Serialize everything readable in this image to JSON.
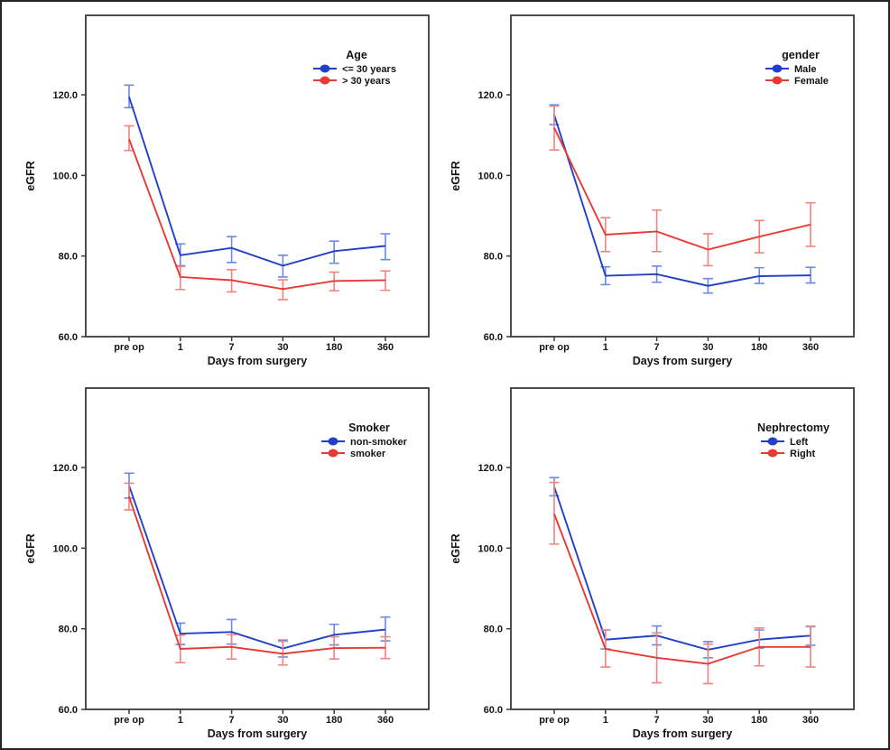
{
  "page": {
    "background": "#ffffff",
    "border_color": "#242424"
  },
  "colors": {
    "series_blue": "#2140c8",
    "series_red": "#e83a34",
    "error_blue": "#6b89e8",
    "error_red": "#f2837e",
    "frame": "#3a3a3a",
    "text": "#141414"
  },
  "chart_data": [
    {
      "type": "line",
      "position": "top-left",
      "legend_title": "Age",
      "legend_position": "upper-right-inside",
      "xlabel": "Days from surgery",
      "ylabel": "eGFR",
      "categories": [
        "pre op",
        "1",
        "7",
        "30",
        "180",
        "360"
      ],
      "ytick_labels": [
        "60.0",
        "80.0",
        "100.0",
        "120.0"
      ],
      "yticks": [
        60,
        80,
        100,
        120
      ],
      "ylim": [
        60,
        139.7
      ],
      "grid": false,
      "error_bars": true,
      "series": [
        {
          "name": "<= 30 years",
          "color": "blue",
          "values": [
            119.5,
            80.2,
            82.0,
            77.6,
            81.2,
            82.5
          ],
          "lower": [
            116.8,
            77.6,
            78.4,
            74.8,
            78.2,
            79.1
          ],
          "upper": [
            122.4,
            83.0,
            84.8,
            80.2,
            83.7,
            85.5
          ]
        },
        {
          "name": "> 30 years",
          "color": "red",
          "values": [
            109.0,
            74.8,
            74.0,
            71.8,
            73.8,
            74.0
          ],
          "lower": [
            106.2,
            71.7,
            71.1,
            69.2,
            71.4,
            71.5
          ],
          "upper": [
            112.3,
            77.4,
            76.6,
            74.1,
            76.0,
            76.3
          ]
        }
      ]
    },
    {
      "type": "line",
      "position": "top-right",
      "legend_title": "gender",
      "legend_position": "upper-right-inside",
      "xlabel": "Days from surgery",
      "ylabel": "eGFR",
      "categories": [
        "pre op",
        "1",
        "7",
        "30",
        "180",
        "360"
      ],
      "ytick_labels": [
        "60.0",
        "80.0",
        "100.0",
        "120.0"
      ],
      "yticks": [
        60,
        80,
        100,
        120
      ],
      "ylim": [
        60,
        139.7
      ],
      "grid": false,
      "error_bars": true,
      "series": [
        {
          "name": "Male",
          "color": "blue",
          "values": [
            115.0,
            75.1,
            75.5,
            72.6,
            75.0,
            75.2
          ],
          "lower": [
            112.6,
            72.9,
            73.5,
            70.8,
            73.2,
            73.3
          ],
          "upper": [
            117.5,
            77.3,
            77.5,
            74.4,
            77.1,
            77.2
          ]
        },
        {
          "name": "Female",
          "color": "red",
          "values": [
            111.8,
            85.3,
            86.1,
            81.6,
            84.8,
            87.8
          ],
          "lower": [
            106.3,
            81.1,
            81.1,
            77.6,
            80.8,
            82.4
          ],
          "upper": [
            117.2,
            89.5,
            91.4,
            85.5,
            88.8,
            93.2
          ]
        }
      ]
    },
    {
      "type": "line",
      "position": "bottom-left",
      "legend_title": "Smoker",
      "legend_position": "upper-right-inside",
      "xlabel": "Days from surgery",
      "ylabel": "eGFR",
      "categories": [
        "pre op",
        "1",
        "7",
        "30",
        "180",
        "360"
      ],
      "ytick_labels": [
        "60.0",
        "80.0",
        "100.0",
        "120.0"
      ],
      "yticks": [
        60,
        80,
        100,
        120
      ],
      "ylim": [
        60,
        139.7
      ],
      "grid": false,
      "error_bars": true,
      "series": [
        {
          "name": "non-smoker",
          "color": "blue",
          "values": [
            115.5,
            78.8,
            79.2,
            75.1,
            78.5,
            79.8
          ],
          "lower": [
            112.4,
            76.1,
            76.2,
            73.0,
            76.0,
            77.0
          ],
          "upper": [
            118.6,
            81.4,
            82.3,
            77.2,
            81.1,
            82.9
          ]
        },
        {
          "name": "smoker",
          "color": "red",
          "values": [
            112.8,
            75.0,
            75.5,
            73.8,
            75.2,
            75.3
          ],
          "lower": [
            109.5,
            71.6,
            72.5,
            71.0,
            72.5,
            72.6
          ],
          "upper": [
            116.1,
            78.4,
            78.5,
            76.9,
            78.0,
            78.0
          ]
        }
      ]
    },
    {
      "type": "line",
      "position": "bottom-right",
      "legend_title": "Nephrectomy",
      "legend_position": "upper-right-inside",
      "xlabel": "Days from surgery",
      "ylabel": "eGFR",
      "categories": [
        "pre op",
        "1",
        "7",
        "30",
        "180",
        "360"
      ],
      "ytick_labels": [
        "60.0",
        "80.0",
        "100.0",
        "120.0"
      ],
      "yticks": [
        60,
        80,
        100,
        120
      ],
      "ylim": [
        60,
        139.7
      ],
      "grid": false,
      "error_bars": true,
      "series": [
        {
          "name": "Left",
          "color": "blue",
          "values": [
            115.2,
            77.3,
            78.3,
            74.8,
            77.3,
            78.3
          ],
          "lower": [
            113.0,
            75.0,
            76.0,
            72.8,
            75.2,
            75.9
          ],
          "upper": [
            117.5,
            79.7,
            80.7,
            76.8,
            79.7,
            80.6
          ]
        },
        {
          "name": "Right",
          "color": "red",
          "values": [
            108.5,
            75.0,
            72.8,
            71.3,
            75.5,
            75.5
          ],
          "lower": [
            101.0,
            70.5,
            66.6,
            66.4,
            70.8,
            70.5
          ],
          "upper": [
            116.3,
            79.7,
            79.0,
            76.2,
            80.2,
            80.5
          ]
        }
      ]
    }
  ]
}
